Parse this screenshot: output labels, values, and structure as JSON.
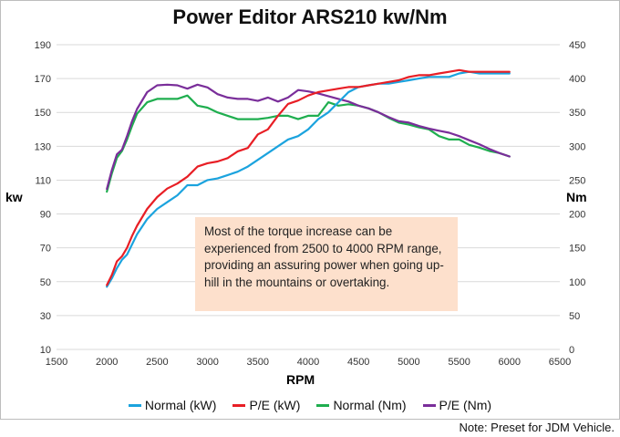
{
  "colors": {
    "normal_kw": "#1ba3de",
    "pe_kw": "#e81e25",
    "normal_nm": "#1fae4f",
    "pe_nm": "#7a2e9a",
    "grid": "#d9d9d9",
    "annotation_bg": "#fde0cc"
  },
  "annotation": {
    "text": "Most of the torque increase can be experienced from 2500 to 4000 RPM range, providing an assuring power when going up-hill in the mountains or overtaking."
  },
  "note": "Note: Preset for JDM Vehicle.",
  "chart_data": {
    "type": "line",
    "title": "Power Editor ARS210 kw/Nm",
    "xlabel": "RPM",
    "ylabel_left": "kw",
    "ylabel_right": "Nm",
    "xlim": [
      1500,
      6500
    ],
    "xticks": [
      1500,
      2000,
      2500,
      3000,
      3500,
      4000,
      4500,
      5000,
      5500,
      6000,
      6500
    ],
    "ylim_left": [
      10,
      190
    ],
    "yticks_left": [
      10,
      30,
      50,
      70,
      90,
      110,
      130,
      150,
      170,
      190
    ],
    "ylim_right": [
      0,
      450
    ],
    "yticks_right": [
      0,
      50,
      100,
      150,
      200,
      250,
      300,
      350,
      400,
      450
    ],
    "grid": "horizontal",
    "legend_position": "bottom",
    "series": [
      {
        "name": "Normal (kW)",
        "axis": "left",
        "x": [
          2000,
          2050,
          2100,
          2150,
          2200,
          2250,
          2300,
          2400,
          2500,
          2600,
          2700,
          2800,
          2900,
          3000,
          3100,
          3200,
          3300,
          3400,
          3500,
          3600,
          3700,
          3800,
          3900,
          4000,
          4100,
          4200,
          4300,
          4400,
          4500,
          4600,
          4700,
          4800,
          4900,
          5000,
          5100,
          5200,
          5300,
          5400,
          5500,
          5600,
          5700,
          5800,
          5900,
          6000
        ],
        "y": [
          47,
          52,
          58,
          63,
          66,
          72,
          78,
          87,
          93,
          97,
          101,
          107,
          107,
          110,
          111,
          113,
          115,
          118,
          122,
          126,
          130,
          134,
          136,
          140,
          146,
          150,
          156,
          162,
          165,
          166,
          167,
          167,
          168,
          169,
          170,
          171,
          171,
          171,
          173,
          174,
          173,
          173,
          173,
          173
        ]
      },
      {
        "name": "P/E (kW)",
        "axis": "left",
        "x": [
          2000,
          2050,
          2100,
          2150,
          2200,
          2250,
          2300,
          2400,
          2500,
          2600,
          2700,
          2800,
          2900,
          3000,
          3100,
          3200,
          3300,
          3400,
          3500,
          3600,
          3700,
          3800,
          3900,
          4000,
          4100,
          4200,
          4300,
          4400,
          4500,
          4600,
          4700,
          4800,
          4900,
          5000,
          5100,
          5200,
          5300,
          5400,
          5500,
          5600,
          5700,
          5800,
          5900,
          6000
        ],
        "y": [
          48,
          54,
          62,
          65,
          70,
          77,
          83,
          93,
          100,
          105,
          108,
          112,
          118,
          120,
          121,
          123,
          127,
          129,
          137,
          140,
          148,
          155,
          157,
          160,
          162,
          163,
          164,
          165,
          165,
          166,
          167,
          168,
          169,
          171,
          172,
          172,
          173,
          174,
          175,
          174,
          174,
          174,
          174,
          174
        ]
      },
      {
        "name": "Normal (Nm)",
        "axis": "right",
        "x": [
          2000,
          2050,
          2100,
          2150,
          2200,
          2250,
          2300,
          2400,
          2500,
          2600,
          2700,
          2800,
          2900,
          3000,
          3100,
          3200,
          3300,
          3400,
          3500,
          3600,
          3700,
          3800,
          3900,
          4000,
          4100,
          4200,
          4300,
          4400,
          4500,
          4600,
          4700,
          4800,
          4900,
          5000,
          5100,
          5200,
          5300,
          5400,
          5500,
          5600,
          5700,
          5800,
          5900,
          6000
        ],
        "y": [
          233,
          260,
          283,
          293,
          310,
          330,
          348,
          365,
          370,
          370,
          370,
          375,
          360,
          357,
          350,
          345,
          340,
          340,
          340,
          342,
          345,
          345,
          340,
          345,
          345,
          365,
          360,
          362,
          360,
          356,
          350,
          342,
          335,
          332,
          328,
          325,
          315,
          310,
          310,
          302,
          298,
          293,
          290,
          285
        ]
      },
      {
        "name": "P/E (Nm)",
        "axis": "right",
        "x": [
          2000,
          2050,
          2100,
          2150,
          2200,
          2250,
          2300,
          2400,
          2500,
          2600,
          2700,
          2800,
          2900,
          3000,
          3100,
          3200,
          3300,
          3400,
          3500,
          3600,
          3700,
          3800,
          3900,
          4000,
          4100,
          4200,
          4300,
          4400,
          4500,
          4600,
          4700,
          4800,
          4900,
          5000,
          5100,
          5200,
          5300,
          5400,
          5500,
          5600,
          5700,
          5800,
          5900,
          6000
        ],
        "y": [
          237,
          265,
          288,
          295,
          315,
          337,
          355,
          380,
          390,
          391,
          390,
          385,
          391,
          387,
          377,
          372,
          370,
          370,
          367,
          372,
          366,
          372,
          383,
          381,
          378,
          374,
          370,
          366,
          360,
          356,
          350,
          343,
          337,
          335,
          330,
          326,
          323,
          320,
          315,
          309,
          303,
          296,
          290,
          285
        ]
      }
    ]
  }
}
